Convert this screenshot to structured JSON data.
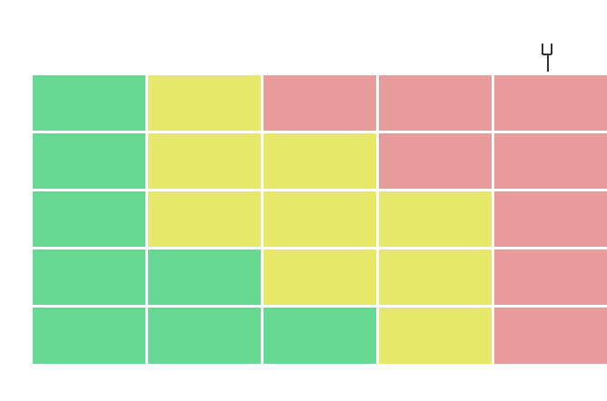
{
  "colors": {
    "low": "#67d993",
    "medium": "#e6e86a",
    "high": "#e89b9b",
    "ink": "#333333"
  },
  "matrix": {
    "rows": [
      [
        "low",
        "medium",
        "high",
        "high",
        "high"
      ],
      [
        "low",
        "medium",
        "medium",
        "high",
        "high"
      ],
      [
        "low",
        "medium",
        "medium",
        "medium",
        "high"
      ],
      [
        "low",
        "low",
        "medium",
        "medium",
        "high"
      ],
      [
        "low",
        "low",
        "low",
        "medium",
        "high"
      ]
    ]
  },
  "callout": {
    "label": "",
    "marker_cell": {
      "row": 1,
      "col": 4
    }
  },
  "axes": {
    "x_label": "",
    "y_label": ""
  }
}
